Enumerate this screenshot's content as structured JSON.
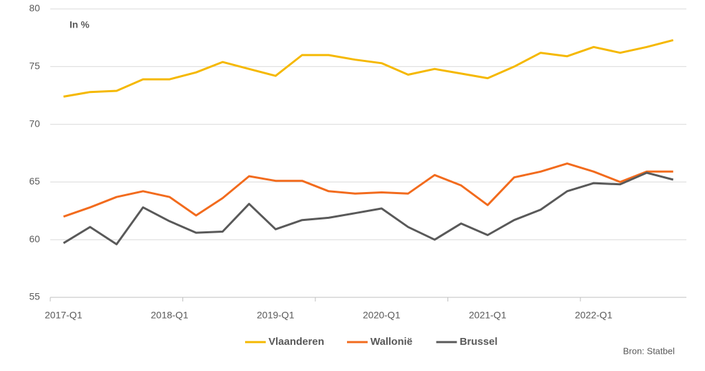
{
  "chart_data": {
    "type": "line",
    "annotations": [
      "In %",
      "Bron: Statbel"
    ],
    "categories": [
      "2017-Q1",
      null,
      null,
      null,
      "2018-Q1",
      null,
      null,
      null,
      "2019-Q1",
      null,
      null,
      null,
      "2020-Q1",
      null,
      null,
      null,
      "2021-Q1",
      null,
      null,
      null,
      "2022-Q1",
      null,
      null,
      null
    ],
    "series": [
      {
        "name": "Vlaanderen",
        "color": "#f5b800",
        "values": [
          72.4,
          72.8,
          72.9,
          73.9,
          73.9,
          74.5,
          75.4,
          74.8,
          74.2,
          76.0,
          76.0,
          75.6,
          75.3,
          74.3,
          74.8,
          74.4,
          74.0,
          75.0,
          76.2,
          75.9,
          76.7,
          76.2,
          76.7,
          77.3
        ]
      },
      {
        "name": "Wallonië",
        "color": "#f26b1d",
        "values": [
          62.0,
          62.8,
          63.7,
          64.2,
          63.7,
          62.1,
          63.6,
          65.5,
          65.1,
          65.1,
          64.2,
          64.0,
          64.1,
          64.0,
          65.6,
          64.7,
          63.0,
          65.4,
          65.9,
          66.6,
          65.9,
          65.0,
          65.9,
          65.9
        ]
      },
      {
        "name": "Brussel",
        "color": "#595959",
        "values": [
          59.7,
          61.1,
          59.6,
          62.8,
          61.6,
          60.6,
          60.7,
          63.1,
          60.9,
          61.7,
          61.9,
          62.3,
          62.7,
          61.1,
          60.0,
          61.4,
          60.4,
          61.7,
          62.6,
          64.2,
          64.9,
          64.8,
          65.8,
          65.2
        ]
      }
    ],
    "ylim": [
      55,
      80
    ],
    "yticks": [
      55,
      60,
      65,
      70,
      75,
      80
    ],
    "grid": true,
    "legend": "bottom"
  }
}
